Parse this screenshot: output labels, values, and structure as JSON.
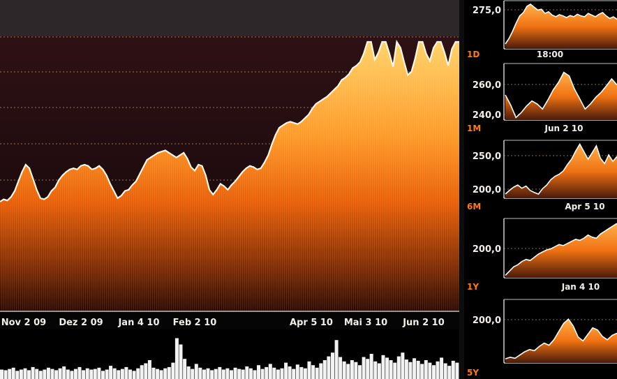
{
  "chart_data": [
    {
      "type": "area",
      "id": "main",
      "title": "",
      "xlabel": "",
      "ylabel": "",
      "x_tick_labels": [
        "Nov 2 09",
        "Dez 2 09",
        "Jan 4 10",
        "Feb 2 10",
        "Apr 5 10",
        "Mai 3 10",
        "Jun 2 10"
      ],
      "grid": true,
      "series": [
        {
          "values": [
            0.43,
            0.45,
            0.44,
            0.47,
            0.52,
            0.6,
            0.68,
            0.74,
            0.71,
            0.62,
            0.53,
            0.46,
            0.45,
            0.47,
            0.52,
            0.55,
            0.61,
            0.65,
            0.68,
            0.7,
            0.71,
            0.7,
            0.73,
            0.74,
            0.73,
            0.7,
            0.71,
            0.73,
            0.7,
            0.65,
            0.58,
            0.52,
            0.46,
            0.48,
            0.52,
            0.53,
            0.57,
            0.6,
            0.66,
            0.72,
            0.78,
            0.8,
            0.82,
            0.84,
            0.85,
            0.86,
            0.84,
            0.82,
            0.8,
            0.82,
            0.84,
            0.79,
            0.72,
            0.69,
            0.74,
            0.73,
            0.65,
            0.53,
            0.49,
            0.53,
            0.58,
            0.56,
            0.53,
            0.57,
            0.6,
            0.64,
            0.68,
            0.71,
            0.73,
            0.72,
            0.7,
            0.71,
            0.76,
            0.82,
            0.91,
            0.99,
            1.05,
            1.07,
            1.09,
            1.1,
            1.09,
            1.08,
            1.1,
            1.13,
            1.16,
            1.21,
            1.25,
            1.27,
            1.29,
            1.31,
            1.34,
            1.37,
            1.4,
            1.45,
            1.47,
            1.5,
            1.55,
            1.57,
            1.6,
            1.67,
            1.78,
            1.8,
            1.62,
            1.68,
            1.86,
            1.78,
            1.67,
            1.56,
            1.78,
            1.72,
            1.6,
            1.49,
            1.52,
            1.63,
            1.77,
            1.8,
            1.67,
            1.61,
            1.72,
            1.89,
            1.81,
            1.68,
            1.57,
            1.71,
            1.9,
            2.03
          ]
        }
      ],
      "volume": [
        0.15,
        0.14,
        0.16,
        0.18,
        0.13,
        0.15,
        0.17,
        0.14,
        0.19,
        0.16,
        0.13,
        0.15,
        0.18,
        0.16,
        0.14,
        0.17,
        0.2,
        0.15,
        0.13,
        0.16,
        0.19,
        0.14,
        0.17,
        0.15,
        0.16,
        0.18,
        0.13,
        0.15,
        0.21,
        0.17,
        0.14,
        0.16,
        0.19,
        0.15,
        0.13,
        0.17,
        0.22,
        0.25,
        0.3,
        0.18,
        0.16,
        0.14,
        0.17,
        0.19,
        0.26,
        0.65,
        0.55,
        0.32,
        0.2,
        0.16,
        0.24,
        0.18,
        0.15,
        0.17,
        0.14,
        0.16,
        0.19,
        0.15,
        0.17,
        0.14,
        0.18,
        0.16,
        0.15,
        0.2,
        0.17,
        0.14,
        0.22,
        0.16,
        0.19,
        0.24,
        0.18,
        0.15,
        0.17,
        0.26,
        0.2,
        0.16,
        0.23,
        0.19,
        0.17,
        0.28,
        0.22,
        0.18,
        0.25,
        0.3,
        0.36,
        0.42,
        0.62,
        0.35,
        0.28,
        0.24,
        0.3,
        0.27,
        0.22,
        0.35,
        0.32,
        0.4,
        0.28,
        0.25,
        0.38,
        0.34,
        0.3,
        0.26,
        0.36,
        0.42,
        0.31,
        0.27,
        0.33,
        0.29,
        0.24,
        0.3,
        0.26,
        0.22,
        0.28,
        0.34,
        0.25,
        0.21,
        0.29,
        0.26
      ]
    },
    {
      "type": "area",
      "id": "p1d",
      "period_label": "1D",
      "y_tick_labels": [
        "275,0"
      ],
      "x_tick_labels": [
        "18:00"
      ],
      "values": [
        0.05,
        0.18,
        0.35,
        0.55,
        0.72,
        0.8,
        0.95,
        1.0,
        0.93,
        0.86,
        0.88,
        0.78,
        0.82,
        0.74,
        0.7,
        0.75,
        0.72,
        0.68,
        0.73,
        0.7,
        0.76,
        0.72,
        0.7,
        0.78,
        0.74,
        0.7,
        0.76,
        0.8,
        0.72,
        0.66,
        0.7,
        0.64
      ]
    },
    {
      "type": "area",
      "id": "p1m",
      "period_label": "1M",
      "y_tick_labels": [
        "260,0",
        "240,0"
      ],
      "x_tick_labels": [
        "Jun 2 10"
      ],
      "values": [
        0.5,
        0.3,
        0.05,
        0.15,
        0.28,
        0.38,
        0.32,
        0.22,
        0.4,
        0.6,
        0.75,
        0.95,
        0.88,
        0.62,
        0.42,
        0.22,
        0.32,
        0.45,
        0.55,
        0.68,
        0.82,
        0.7
      ]
    },
    {
      "type": "area",
      "id": "p6m",
      "period_label": "6M",
      "y_tick_labels": [
        "250,0",
        "200,0"
      ],
      "x_tick_labels": [
        "Apr 5 10"
      ],
      "values": [
        0.05,
        0.12,
        0.18,
        0.22,
        0.16,
        0.2,
        0.12,
        0.08,
        0.05,
        0.15,
        0.22,
        0.32,
        0.38,
        0.42,
        0.48,
        0.6,
        0.7,
        0.85,
        0.98,
        0.84,
        0.7,
        0.82,
        0.95,
        0.72,
        0.62,
        0.78,
        0.66,
        0.75
      ]
    },
    {
      "type": "area",
      "id": "p1y",
      "period_label": "1Y",
      "y_tick_labels": [
        "200,0"
      ],
      "x_tick_labels": [
        "Jan 4 10"
      ],
      "values": [
        0.02,
        0.1,
        0.18,
        0.22,
        0.28,
        0.32,
        0.3,
        0.36,
        0.42,
        0.46,
        0.5,
        0.52,
        0.56,
        0.6,
        0.58,
        0.62,
        0.66,
        0.7,
        0.68,
        0.72,
        0.78,
        0.74,
        0.72,
        0.8,
        0.85,
        0.9,
        0.95,
        1.0
      ]
    },
    {
      "type": "area",
      "id": "p5y",
      "period_label": "5Y",
      "y_tick_labels": [
        "200,0"
      ],
      "x_tick_labels": [],
      "values": [
        0.05,
        0.08,
        0.06,
        0.12,
        0.18,
        0.22,
        0.2,
        0.28,
        0.34,
        0.3,
        0.4,
        0.55,
        0.7,
        0.78,
        0.65,
        0.45,
        0.38,
        0.5,
        0.62,
        0.58,
        0.46,
        0.4,
        0.48,
        0.52
      ]
    }
  ]
}
